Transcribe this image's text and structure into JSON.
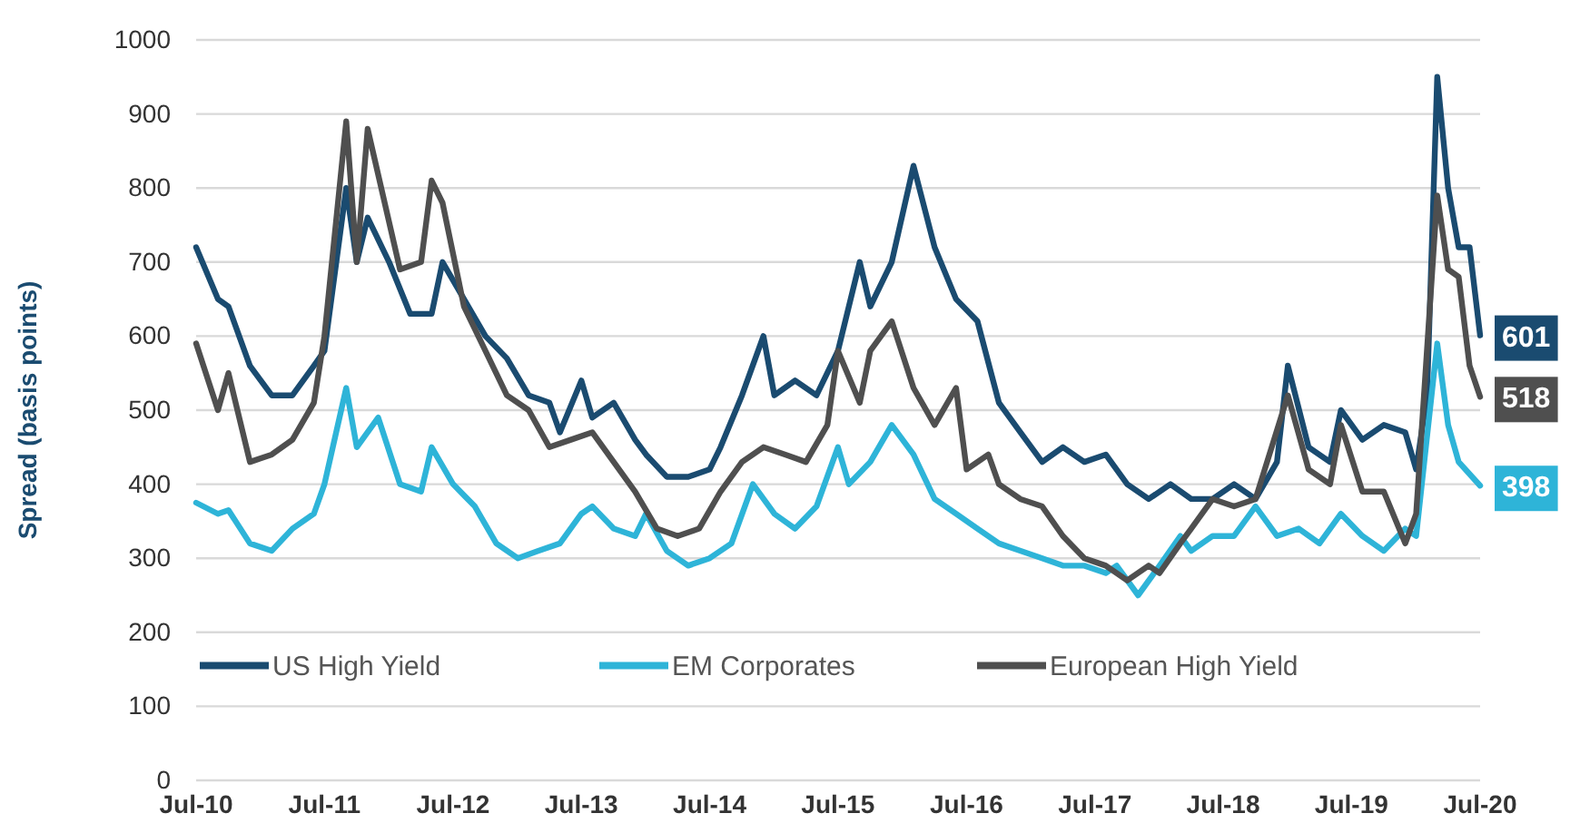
{
  "chart_data": {
    "type": "line",
    "ylabel": "Spread (basis points)",
    "xlim": [
      "2010-07",
      "2020-07"
    ],
    "xticks": [
      {
        "value": "2010-07",
        "label": "Jul-10"
      },
      {
        "value": "2011-07",
        "label": "Jul-11"
      },
      {
        "value": "2012-07",
        "label": "Jul-12"
      },
      {
        "value": "2013-07",
        "label": "Jul-13"
      },
      {
        "value": "2014-07",
        "label": "Jul-14"
      },
      {
        "value": "2015-07",
        "label": "Jul-15"
      },
      {
        "value": "2016-07",
        "label": "Jul-16"
      },
      {
        "value": "2017-07",
        "label": "Jul-17"
      },
      {
        "value": "2018-07",
        "label": "Jul-18"
      },
      {
        "value": "2019-07",
        "label": "Jul-19"
      },
      {
        "value": "2020-07",
        "label": "Jul-20"
      }
    ],
    "ylim": [
      0,
      1000
    ],
    "yticks": [
      0,
      100,
      200,
      300,
      400,
      500,
      600,
      700,
      800,
      900,
      1000
    ],
    "grid": "y",
    "legend": "bottom",
    "line_style": "solid",
    "marker": "none",
    "series": [
      {
        "name": "US High Yield",
        "color": "#1a4b70",
        "x": [
          "2010-07",
          "2010-09",
          "2010-10",
          "2010-12",
          "2011-02",
          "2011-04",
          "2011-06",
          "2011-07",
          "2011-09",
          "2011-10",
          "2011-11",
          "2012-01",
          "2012-03",
          "2012-05",
          "2012-06",
          "2012-08",
          "2012-10",
          "2012-12",
          "2013-02",
          "2013-04",
          "2013-05",
          "2013-07",
          "2013-08",
          "2013-10",
          "2013-12",
          "2014-01",
          "2014-03",
          "2014-05",
          "2014-07",
          "2014-08",
          "2014-10",
          "2014-12",
          "2015-01",
          "2015-03",
          "2015-05",
          "2015-07",
          "2015-09",
          "2015-10",
          "2015-12",
          "2016-02",
          "2016-04",
          "2016-06",
          "2016-08",
          "2016-10",
          "2016-12",
          "2017-02",
          "2017-04",
          "2017-06",
          "2017-08",
          "2017-10",
          "2017-12",
          "2018-02",
          "2018-04",
          "2018-06",
          "2018-08",
          "2018-10",
          "2018-12",
          "2019-01",
          "2019-03",
          "2019-05",
          "2019-06",
          "2019-08",
          "2019-10",
          "2019-12",
          "2020-01",
          "2020-02",
          "2020-03",
          "2020-04",
          "2020-05",
          "2020-06",
          "2020-07"
        ],
        "values": [
          720,
          650,
          640,
          560,
          520,
          520,
          560,
          580,
          800,
          700,
          760,
          700,
          630,
          630,
          700,
          650,
          600,
          570,
          520,
          510,
          470,
          540,
          490,
          510,
          460,
          440,
          410,
          410,
          420,
          450,
          520,
          600,
          520,
          540,
          520,
          580,
          700,
          640,
          700,
          830,
          720,
          650,
          620,
          510,
          470,
          430,
          450,
          430,
          440,
          400,
          380,
          400,
          380,
          380,
          400,
          380,
          430,
          560,
          450,
          430,
          500,
          460,
          480,
          470,
          420,
          520,
          950,
          800,
          720,
          720,
          601
        ]
      },
      {
        "name": "EM Corporates",
        "color": "#2eb4d8",
        "x": [
          "2010-07",
          "2010-09",
          "2010-10",
          "2010-12",
          "2011-02",
          "2011-04",
          "2011-06",
          "2011-07",
          "2011-09",
          "2011-10",
          "2011-12",
          "2012-02",
          "2012-04",
          "2012-05",
          "2012-07",
          "2012-09",
          "2012-11",
          "2013-01",
          "2013-03",
          "2013-05",
          "2013-07",
          "2013-08",
          "2013-10",
          "2013-12",
          "2014-01",
          "2014-03",
          "2014-05",
          "2014-07",
          "2014-09",
          "2014-11",
          "2015-01",
          "2015-03",
          "2015-05",
          "2015-07",
          "2015-08",
          "2015-10",
          "2015-12",
          "2016-02",
          "2016-04",
          "2016-06",
          "2016-08",
          "2016-10",
          "2016-12",
          "2017-02",
          "2017-04",
          "2017-06",
          "2017-08",
          "2017-09",
          "2017-11",
          "2018-01",
          "2018-03",
          "2018-04",
          "2018-06",
          "2018-08",
          "2018-10",
          "2018-12",
          "2019-02",
          "2019-04",
          "2019-06",
          "2019-08",
          "2019-10",
          "2019-12",
          "2020-01",
          "2020-03",
          "2020-04",
          "2020-05",
          "2020-07"
        ],
        "values": [
          375,
          360,
          365,
          320,
          310,
          340,
          360,
          400,
          530,
          450,
          490,
          400,
          390,
          450,
          400,
          370,
          320,
          300,
          310,
          320,
          360,
          370,
          340,
          330,
          360,
          310,
          290,
          300,
          320,
          400,
          360,
          340,
          370,
          450,
          400,
          430,
          480,
          440,
          380,
          360,
          340,
          320,
          310,
          300,
          290,
          290,
          280,
          290,
          250,
          290,
          330,
          310,
          330,
          330,
          370,
          330,
          340,
          320,
          360,
          330,
          310,
          340,
          330,
          590,
          480,
          430,
          398
        ]
      },
      {
        "name": "European High Yield",
        "color": "#4f4f4f",
        "x": [
          "2010-07",
          "2010-09",
          "2010-10",
          "2010-12",
          "2011-02",
          "2011-04",
          "2011-06",
          "2011-07",
          "2011-09",
          "2011-10",
          "2011-11",
          "2012-02",
          "2012-04",
          "2012-05",
          "2012-06",
          "2012-08",
          "2012-10",
          "2012-12",
          "2013-02",
          "2013-04",
          "2013-06",
          "2013-08",
          "2013-10",
          "2013-12",
          "2014-02",
          "2014-04",
          "2014-06",
          "2014-08",
          "2014-10",
          "2014-12",
          "2015-02",
          "2015-04",
          "2015-06",
          "2015-07",
          "2015-09",
          "2015-10",
          "2015-12",
          "2016-02",
          "2016-04",
          "2016-06",
          "2016-07",
          "2016-09",
          "2016-10",
          "2016-12",
          "2017-02",
          "2017-04",
          "2017-06",
          "2017-08",
          "2017-10",
          "2017-12",
          "2018-01",
          "2018-03",
          "2018-04",
          "2018-06",
          "2018-08",
          "2018-10",
          "2019-01",
          "2019-03",
          "2019-05",
          "2019-06",
          "2019-08",
          "2019-10",
          "2019-12",
          "2020-01",
          "2020-03",
          "2020-04",
          "2020-05",
          "2020-06",
          "2020-07"
        ],
        "values": [
          590,
          500,
          550,
          430,
          440,
          460,
          510,
          600,
          890,
          700,
          880,
          690,
          700,
          810,
          780,
          640,
          580,
          520,
          500,
          450,
          460,
          470,
          430,
          390,
          340,
          330,
          340,
          390,
          430,
          450,
          440,
          430,
          480,
          580,
          510,
          580,
          620,
          530,
          480,
          530,
          420,
          440,
          400,
          380,
          370,
          330,
          300,
          290,
          270,
          290,
          280,
          320,
          340,
          380,
          370,
          380,
          520,
          420,
          400,
          480,
          390,
          390,
          320,
          360,
          790,
          690,
          680,
          560,
          518
        ]
      }
    ],
    "annotations": [
      {
        "text": "601",
        "x": "2020-07",
        "y": 601
      },
      {
        "text": "398",
        "x": "2020-07",
        "y": 398
      },
      {
        "text": "518",
        "x": "2020-07",
        "y": 518
      }
    ]
  }
}
